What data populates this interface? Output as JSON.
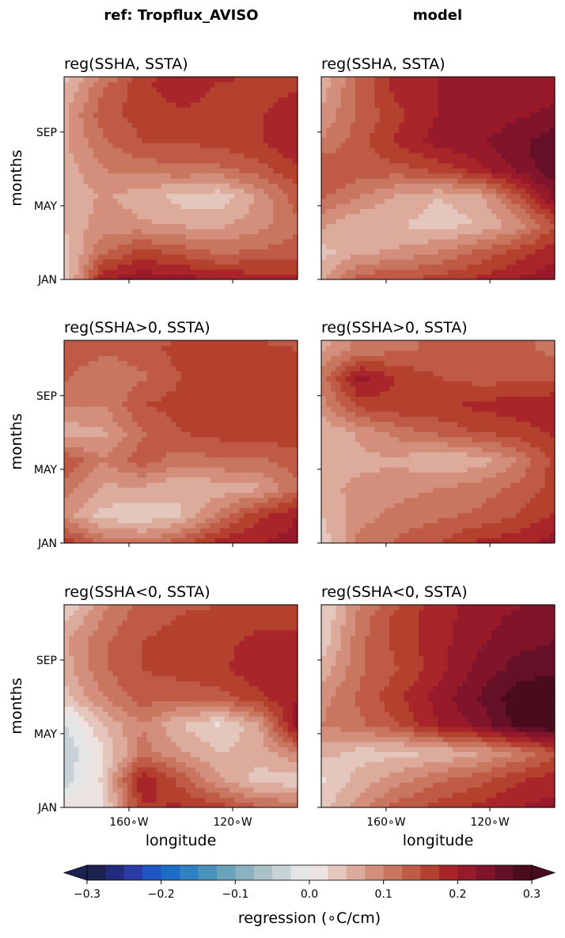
{
  "figure": {
    "column_titles": [
      "ref: Tropflux_AVISO",
      "model"
    ],
    "ylabel": "months",
    "xlabel": "longitude"
  },
  "colorbar": {
    "label": "regression ($^\\circ$C/cm)",
    "label_display": "regression (∘C/cm)",
    "levels": [
      -0.3,
      -0.275,
      -0.25,
      -0.225,
      -0.2,
      -0.175,
      -0.15,
      -0.125,
      -0.1,
      -0.075,
      -0.05,
      -0.025,
      0.0,
      0.025,
      0.05,
      0.075,
      0.1,
      0.125,
      0.15,
      0.175,
      0.2,
      0.225,
      0.25,
      0.275,
      0.3
    ],
    "tick_labels": [
      "−0.3",
      "−0.2",
      "−0.1",
      "0.0",
      "0.1",
      "0.2",
      "0.3"
    ],
    "tick_values": [
      -0.3,
      -0.2,
      -0.1,
      0.0,
      0.1,
      0.2,
      0.3
    ],
    "colors": [
      "#1d2351",
      "#232c7c",
      "#2a3ba7",
      "#1f55c4",
      "#1b6dc6",
      "#2e82c3",
      "#4893bd",
      "#68a2bb",
      "#8ab1c0",
      "#aac1c8",
      "#c8d2d6",
      "#e3e5e6",
      "#ece2df",
      "#e5c6bd",
      "#dcab9b",
      "#d38f7b",
      "#c87660",
      "#bf5b45",
      "#b4402e",
      "#a8252a",
      "#961a2a",
      "#80142a",
      "#651026",
      "#4a0c1c"
    ],
    "extend": "both"
  },
  "chart_data": [
    {
      "type": "heatmap",
      "title": "reg(SSHA, SSTA)",
      "column": "ref: Tropflux_AVISO",
      "x_ticks": [
        "160∘W",
        "120∘W"
      ],
      "x_tick_values": [
        -160,
        -120
      ],
      "y_ticks": [
        "JAN",
        "MAY",
        "SEP"
      ],
      "y_tick_values": [
        1,
        5,
        9
      ],
      "xlim": [
        -185,
        -95
      ],
      "ylim": [
        1,
        12
      ],
      "x": [
        -185,
        -170,
        -155,
        -140,
        -125,
        -110,
        -95
      ],
      "y": [
        1,
        2.5,
        4,
        5.5,
        7,
        8.5,
        10,
        11.5,
        12
      ],
      "z": [
        [
          0.02,
          0.2,
          0.22,
          0.21,
          0.2,
          0.19,
          0.18
        ],
        [
          0.04,
          0.12,
          0.16,
          0.14,
          0.12,
          0.13,
          0.14
        ],
        [
          0.05,
          0.09,
          0.08,
          0.07,
          0.07,
          0.09,
          0.12
        ],
        [
          0.05,
          0.08,
          0.06,
          0.04,
          0.03,
          0.08,
          0.14
        ],
        [
          0.06,
          0.1,
          0.11,
          0.12,
          0.12,
          0.14,
          0.17
        ],
        [
          0.07,
          0.12,
          0.15,
          0.15,
          0.16,
          0.17,
          0.2
        ],
        [
          0.07,
          0.14,
          0.16,
          0.17,
          0.17,
          0.17,
          0.2
        ],
        [
          0.05,
          0.12,
          0.17,
          0.19,
          0.17,
          0.16,
          0.17
        ],
        [
          0.04,
          0.1,
          0.16,
          0.2,
          0.19,
          0.16,
          0.16
        ]
      ]
    },
    {
      "type": "heatmap",
      "title": "reg(SSHA, SSTA)",
      "column": "model",
      "x_ticks": [
        "160∘W",
        "120∘W"
      ],
      "x_tick_values": [
        -160,
        -120
      ],
      "y_ticks": [
        "JAN",
        "MAY",
        "SEP"
      ],
      "y_tick_values": [
        1,
        5,
        9
      ],
      "xlim": [
        -185,
        -95
      ],
      "ylim": [
        1,
        12
      ],
      "x": [
        -185,
        -170,
        -155,
        -140,
        -125,
        -110,
        -95
      ],
      "y": [
        1,
        2.5,
        4,
        5.5,
        7,
        8.5,
        10,
        11.5,
        12
      ],
      "z": [
        [
          0.07,
          0.14,
          0.15,
          0.16,
          0.18,
          0.2,
          0.22
        ],
        [
          0.04,
          0.07,
          0.08,
          0.1,
          0.13,
          0.16,
          0.19
        ],
        [
          0.08,
          0.05,
          0.05,
          0.04,
          0.05,
          0.08,
          0.15
        ],
        [
          0.13,
          0.1,
          0.07,
          0.05,
          0.06,
          0.14,
          0.23
        ],
        [
          0.15,
          0.14,
          0.14,
          0.16,
          0.19,
          0.23,
          0.27
        ],
        [
          0.1,
          0.14,
          0.18,
          0.21,
          0.22,
          0.24,
          0.27
        ],
        [
          0.08,
          0.13,
          0.17,
          0.2,
          0.21,
          0.22,
          0.23
        ],
        [
          0.06,
          0.13,
          0.19,
          0.2,
          0.2,
          0.21,
          0.22
        ],
        [
          0.05,
          0.13,
          0.19,
          0.2,
          0.2,
          0.2,
          0.21
        ]
      ]
    },
    {
      "type": "heatmap",
      "title": "reg(SSHA>0, SSTA)",
      "column": "ref: Tropflux_AVISO",
      "x_ticks": [
        "160∘W",
        "120∘W"
      ],
      "x_tick_values": [
        -160,
        -120
      ],
      "y_ticks": [
        "JAN",
        "MAY",
        "SEP"
      ],
      "y_tick_values": [
        1,
        5,
        9
      ],
      "xlim": [
        -185,
        -95
      ],
      "ylim": [
        1,
        12
      ],
      "x": [
        -185,
        -170,
        -155,
        -140,
        -125,
        -110,
        -95
      ],
      "y": [
        1,
        2.5,
        4,
        5.5,
        7,
        8.5,
        10,
        11.5,
        12
      ],
      "z": [
        [
          0.17,
          0.12,
          0.11,
          0.14,
          0.19,
          0.2,
          0.21
        ],
        [
          0.09,
          0.04,
          0.03,
          0.05,
          0.11,
          0.17,
          0.2
        ],
        [
          0.11,
          0.07,
          0.07,
          0.05,
          0.06,
          0.07,
          0.12
        ],
        [
          0.15,
          0.1,
          0.14,
          0.11,
          0.12,
          0.12,
          0.14
        ],
        [
          0.06,
          0.07,
          0.12,
          0.15,
          0.16,
          0.17,
          0.16
        ],
        [
          0.1,
          0.1,
          0.15,
          0.16,
          0.15,
          0.15,
          0.16
        ],
        [
          0.13,
          0.1,
          0.12,
          0.15,
          0.17,
          0.17,
          0.17
        ],
        [
          0.15,
          0.13,
          0.14,
          0.16,
          0.17,
          0.16,
          0.15
        ],
        [
          0.13,
          0.14,
          0.14,
          0.15,
          0.16,
          0.15,
          0.14
        ]
      ]
    },
    {
      "type": "heatmap",
      "title": "reg(SSHA>0, SSTA)",
      "column": "model",
      "x_ticks": [
        "160∘W",
        "120∘W"
      ],
      "x_tick_values": [
        -160,
        -120
      ],
      "y_ticks": [
        "JAN",
        "MAY",
        "SEP"
      ],
      "y_tick_values": [
        1,
        5,
        9
      ],
      "xlim": [
        -185,
        -95
      ],
      "ylim": [
        1,
        12
      ],
      "x": [
        -185,
        -170,
        -155,
        -140,
        -125,
        -110,
        -95
      ],
      "y": [
        1,
        2.5,
        4,
        5.5,
        7,
        8.5,
        10,
        11.5,
        12
      ],
      "z": [
        [
          0.03,
          0.11,
          0.13,
          0.15,
          0.18,
          0.19,
          0.21
        ],
        [
          0.05,
          0.09,
          0.11,
          0.12,
          0.13,
          0.15,
          0.18
        ],
        [
          0.07,
          0.08,
          0.09,
          0.1,
          0.11,
          0.13,
          0.16
        ],
        [
          0.06,
          0.07,
          0.07,
          0.05,
          0.06,
          0.1,
          0.16
        ],
        [
          0.05,
          0.08,
          0.11,
          0.13,
          0.15,
          0.16,
          0.18
        ],
        [
          0.09,
          0.16,
          0.17,
          0.17,
          0.18,
          0.19,
          0.2
        ],
        [
          0.11,
          0.21,
          0.17,
          0.15,
          0.14,
          0.14,
          0.14
        ],
        [
          0.07,
          0.11,
          0.12,
          0.13,
          0.13,
          0.13,
          0.12
        ],
        [
          0.06,
          0.11,
          0.12,
          0.13,
          0.13,
          0.13,
          0.12
        ]
      ]
    },
    {
      "type": "heatmap",
      "title": "reg(SSHA<0, SSTA)",
      "column": "ref: Tropflux_AVISO",
      "x_ticks": [
        "160∘W",
        "120∘W"
      ],
      "x_tick_values": [
        -160,
        -120
      ],
      "y_ticks": [
        "JAN",
        "MAY",
        "SEP"
      ],
      "y_tick_values": [
        1,
        5,
        9
      ],
      "xlim": [
        -185,
        -95
      ],
      "ylim": [
        1,
        12
      ],
      "x": [
        -185,
        -170,
        -155,
        -140,
        -125,
        -110,
        -95
      ],
      "y": [
        1,
        2.5,
        4,
        5.5,
        7,
        8.5,
        10,
        11.5,
        12
      ],
      "z": [
        [
          0.02,
          0.02,
          0.17,
          0.18,
          0.16,
          0.13,
          0.12
        ],
        [
          -0.04,
          0.03,
          0.2,
          0.14,
          0.08,
          0.04,
          0.03
        ],
        [
          -0.05,
          0.02,
          0.11,
          0.08,
          0.05,
          0.06,
          0.1
        ],
        [
          -0.03,
          0.05,
          0.1,
          0.05,
          0.02,
          0.07,
          0.22
        ],
        [
          0.04,
          0.1,
          0.14,
          0.13,
          0.14,
          0.17,
          0.2
        ],
        [
          0.06,
          0.12,
          0.15,
          0.16,
          0.17,
          0.19,
          0.2
        ],
        [
          0.07,
          0.12,
          0.15,
          0.16,
          0.17,
          0.18,
          0.19
        ],
        [
          0.04,
          0.1,
          0.14,
          0.15,
          0.16,
          0.17,
          0.16
        ],
        [
          0.02,
          0.09,
          0.13,
          0.14,
          0.15,
          0.16,
          0.15
        ]
      ]
    },
    {
      "type": "heatmap",
      "title": "reg(SSHA<0, SSTA)",
      "column": "model",
      "x_ticks": [
        "160∘W",
        "120∘W"
      ],
      "x_tick_values": [
        -160,
        -120
      ],
      "y_ticks": [
        "JAN",
        "MAY",
        "SEP"
      ],
      "y_tick_values": [
        1,
        5,
        9
      ],
      "xlim": [
        -185,
        -95
      ],
      "ylim": [
        1,
        12
      ],
      "x": [
        -185,
        -170,
        -155,
        -140,
        -125,
        -110,
        -95
      ],
      "y": [
        1,
        2.5,
        4,
        5.5,
        7,
        8.5,
        10,
        11.5,
        12
      ],
      "z": [
        [
          0.04,
          0.09,
          0.14,
          0.16,
          0.18,
          0.2,
          0.21
        ],
        [
          0.02,
          0.06,
          0.09,
          0.12,
          0.14,
          0.17,
          0.19
        ],
        [
          0.06,
          0.04,
          0.04,
          0.05,
          0.07,
          0.1,
          0.14
        ],
        [
          0.1,
          0.12,
          0.15,
          0.2,
          0.23,
          0.28,
          0.31
        ],
        [
          0.09,
          0.13,
          0.17,
          0.21,
          0.25,
          0.29,
          0.3
        ],
        [
          0.06,
          0.12,
          0.15,
          0.19,
          0.23,
          0.26,
          0.27
        ],
        [
          0.03,
          0.12,
          0.16,
          0.19,
          0.22,
          0.24,
          0.25
        ],
        [
          0.02,
          0.11,
          0.16,
          0.19,
          0.21,
          0.23,
          0.24
        ],
        [
          0.02,
          0.1,
          0.15,
          0.19,
          0.21,
          0.22,
          0.24
        ]
      ]
    }
  ]
}
